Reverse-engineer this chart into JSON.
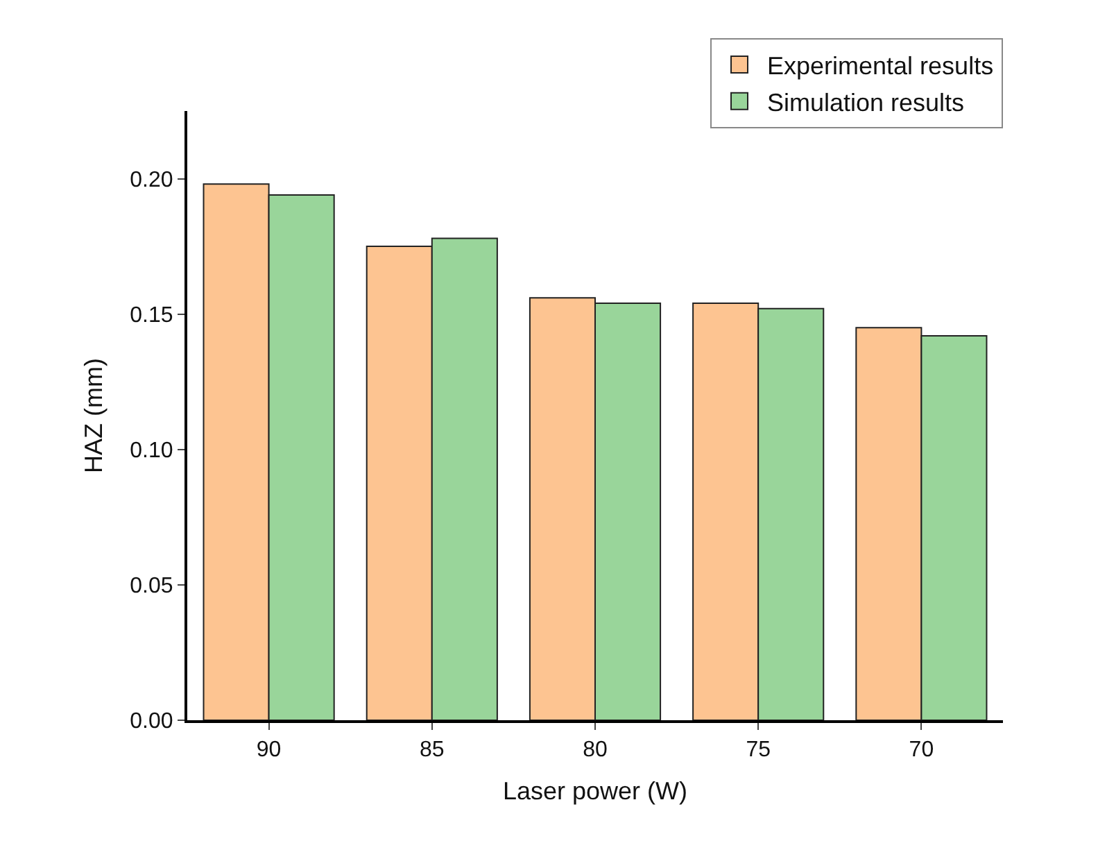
{
  "chart_data": {
    "type": "bar",
    "xlabel": "Laser power (W)",
    "ylabel": "HAZ (mm)",
    "categories": [
      "90",
      "85",
      "80",
      "75",
      "70"
    ],
    "series": [
      {
        "name": "Experimental results",
        "color": "#fdc491",
        "values": [
          0.198,
          0.175,
          0.156,
          0.154,
          0.145
        ]
      },
      {
        "name": "Simulation results",
        "color": "#99d59a",
        "values": [
          0.194,
          0.178,
          0.154,
          0.152,
          0.142
        ]
      }
    ],
    "ylim": [
      0,
      0.225
    ],
    "yticks": [
      {
        "value": 0,
        "label": "0.00"
      },
      {
        "value": 0.05,
        "label": "0.05"
      },
      {
        "value": 0.1,
        "label": "0.10"
      },
      {
        "value": 0.15,
        "label": "0.15"
      },
      {
        "value": 0.2,
        "label": "0.20"
      }
    ],
    "legend": "top right"
  }
}
